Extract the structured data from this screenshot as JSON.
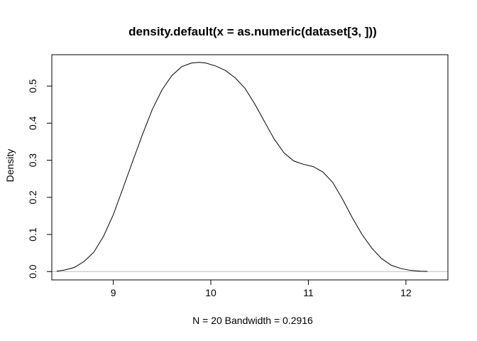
{
  "chart_data": {
    "type": "line",
    "title": "density.default(x = as.numeric(dataset[3, ]))",
    "xlabel": "N = 20   Bandwidth = 0.2916",
    "ylabel": "Density",
    "xlim": [
      8.37,
      12.43
    ],
    "ylim": [
      -0.0225,
      0.5845
    ],
    "x_ticks": [
      9,
      10,
      11,
      12
    ],
    "x_tick_labels": [
      "9",
      "10",
      "11",
      "12"
    ],
    "y_ticks": [
      0.0,
      0.1,
      0.2,
      0.3,
      0.4,
      0.5
    ],
    "y_tick_labels": [
      "0.0",
      "0.1",
      "0.2",
      "0.3",
      "0.4",
      "0.5"
    ],
    "grid": false,
    "baseline_y": 0,
    "baseline_color": "#bebebe",
    "line_color": "#000000",
    "series": [
      {
        "x": [
          8.42,
          8.5,
          8.6,
          8.7,
          8.8,
          8.9,
          9.0,
          9.1,
          9.2,
          9.3,
          9.4,
          9.5,
          9.6,
          9.7,
          9.8,
          9.88,
          9.95,
          10.05,
          10.15,
          10.25,
          10.35,
          10.45,
          10.55,
          10.65,
          10.75,
          10.85,
          10.95,
          11.05,
          11.15,
          11.25,
          11.35,
          11.45,
          11.55,
          11.65,
          11.75,
          11.85,
          11.95,
          12.05,
          12.15,
          12.22
        ],
        "y": [
          0.001,
          0.004,
          0.011,
          0.027,
          0.052,
          0.095,
          0.153,
          0.225,
          0.298,
          0.37,
          0.437,
          0.49,
          0.528,
          0.552,
          0.562,
          0.564,
          0.562,
          0.554,
          0.542,
          0.522,
          0.494,
          0.452,
          0.404,
          0.357,
          0.32,
          0.298,
          0.289,
          0.283,
          0.268,
          0.24,
          0.195,
          0.145,
          0.1,
          0.063,
          0.035,
          0.017,
          0.008,
          0.003,
          0.001,
          0.0005
        ]
      }
    ]
  }
}
